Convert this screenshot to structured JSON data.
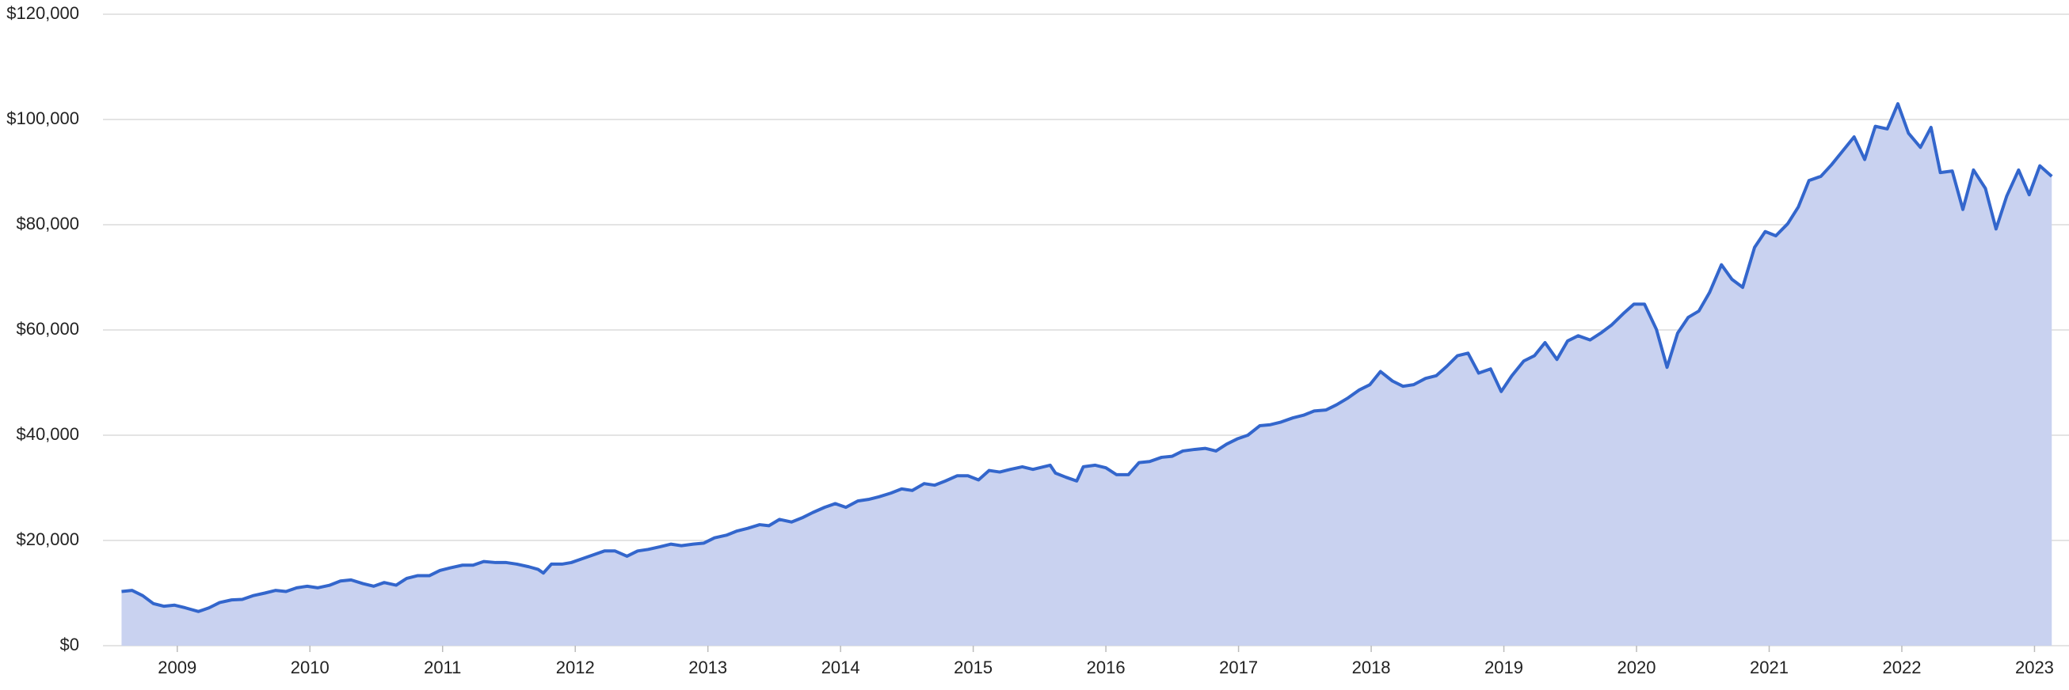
{
  "chart_data": {
    "type": "area",
    "color": "#3366cc",
    "fill": "#c9d2f0",
    "grid": true,
    "xlim": [
      2008.44,
      2023.26
    ],
    "xticks": [
      2009,
      2010,
      2011,
      2012,
      2013,
      2014,
      2015,
      2016,
      2017,
      2018,
      2019,
      2020,
      2021,
      2022,
      2023
    ],
    "ylim": [
      0,
      120000
    ],
    "yticks": [
      {
        "value": 0,
        "label": "$0"
      },
      {
        "value": 20000,
        "label": "$20,000"
      },
      {
        "value": 40000,
        "label": "$40,000"
      },
      {
        "value": 60000,
        "label": "$60,000"
      },
      {
        "value": 80000,
        "label": "$80,000"
      },
      {
        "value": 100000,
        "label": "$100,000"
      },
      {
        "value": 120000,
        "label": "$120,000"
      }
    ],
    "x": [
      2008.58,
      2008.66,
      2008.74,
      2008.82,
      2008.9,
      2008.98,
      2009.06,
      2009.16,
      2009.24,
      2009.32,
      2009.41,
      2009.49,
      2009.57,
      2009.66,
      2009.74,
      2009.82,
      2009.9,
      2009.98,
      2010.06,
      2010.15,
      2010.23,
      2010.31,
      2010.4,
      2010.48,
      2010.56,
      2010.65,
      2010.73,
      2010.81,
      2010.9,
      2010.98,
      2011.06,
      2011.15,
      2011.23,
      2011.31,
      2011.4,
      2011.48,
      2011.56,
      2011.65,
      2011.72,
      2011.76,
      2011.82,
      2011.9,
      2011.97,
      2012.05,
      2012.14,
      2012.22,
      2012.3,
      2012.39,
      2012.47,
      2012.55,
      2012.64,
      2012.72,
      2012.8,
      2012.89,
      2012.97,
      2013.05,
      2013.14,
      2013.22,
      2013.3,
      2013.39,
      2013.46,
      2013.54,
      2013.63,
      2013.71,
      2013.79,
      2013.88,
      2013.96,
      2014.04,
      2014.13,
      2014.21,
      2014.29,
      2014.38,
      2014.46,
      2014.54,
      2014.63,
      2014.71,
      2014.79,
      2014.88,
      2014.96,
      2015.04,
      2015.12,
      2015.2,
      2015.28,
      2015.37,
      2015.45,
      2015.53,
      2015.58,
      2015.62,
      2015.7,
      2015.78,
      2015.83,
      2015.92,
      2016.0,
      2016.08,
      2016.17,
      2016.25,
      2016.33,
      2016.42,
      2016.5,
      2016.58,
      2016.67,
      2016.75,
      2016.83,
      2016.91,
      2016.99,
      2017.07,
      2017.16,
      2017.24,
      2017.32,
      2017.41,
      2017.49,
      2017.57,
      2017.66,
      2017.74,
      2017.82,
      2017.91,
      2017.99,
      2018.07,
      2018.16,
      2018.24,
      2018.32,
      2018.41,
      2018.49,
      2018.57,
      2018.65,
      2018.73,
      2018.81,
      2018.9,
      2018.98,
      2019.06,
      2019.15,
      2019.23,
      2019.31,
      2019.4,
      2019.48,
      2019.56,
      2019.65,
      2019.73,
      2019.81,
      2019.9,
      2019.98,
      2020.06,
      2020.15,
      2020.23,
      2020.31,
      2020.39,
      2020.47,
      2020.55,
      2020.64,
      2020.72,
      2020.8,
      2020.89,
      2020.97,
      2021.05,
      2021.14,
      2021.22,
      2021.3,
      2021.39,
      2021.47,
      2021.55,
      2021.64,
      2021.72,
      2021.8,
      2021.89,
      2021.97,
      2022.05,
      2022.14,
      2022.22,
      2022.29,
      2022.38,
      2022.46,
      2022.54,
      2022.63,
      2022.71,
      2022.79,
      2022.88,
      2022.96,
      2023.04,
      2023.13
    ],
    "values": [
      10300,
      10500,
      9500,
      8000,
      7500,
      7700,
      7200,
      6500,
      7200,
      8200,
      8700,
      8800,
      9500,
      10000,
      10500,
      10300,
      11000,
      11300,
      11000,
      11500,
      12300,
      12500,
      11800,
      11300,
      12000,
      11500,
      12800,
      13300,
      13300,
      14300,
      14800,
      15300,
      15300,
      16000,
      15800,
      15800,
      15500,
      15000,
      14500,
      13800,
      15500,
      15500,
      15800,
      16500,
      17300,
      18000,
      18000,
      17000,
      18000,
      18300,
      18800,
      19300,
      19000,
      19300,
      19500,
      20500,
      21000,
      21800,
      22300,
      23000,
      22800,
      24000,
      23500,
      24300,
      25300,
      26300,
      27000,
      26300,
      27500,
      27800,
      28300,
      29000,
      29800,
      29500,
      30800,
      30500,
      31300,
      32300,
      32300,
      31500,
      33300,
      33000,
      33500,
      34000,
      33500,
      34000,
      34300,
      32800,
      32000,
      31300,
      34000,
      34300,
      33800,
      32500,
      32500,
      34800,
      35000,
      35800,
      36000,
      37000,
      37300,
      37500,
      37000,
      38300,
      39300,
      40000,
      41800,
      42000,
      42500,
      43300,
      43800,
      44600,
      44800,
      45800,
      47000,
      48600,
      49600,
      52100,
      50300,
      49300,
      49600,
      50800,
      51300,
      53100,
      55100,
      55600,
      51800,
      52600,
      48300,
      51300,
      54100,
      55100,
      57600,
      54400,
      57900,
      58900,
      58100,
      59400,
      60900,
      63100,
      64900,
      64900,
      60100,
      52900,
      59400,
      62400,
      63600,
      67100,
      72400,
      69600,
      68100,
      75700,
      78700,
      77900,
      80200,
      83400,
      88400,
      89200,
      91400,
      93900,
      96700,
      92400,
      98700,
      98200,
      103000,
      97400,
      94700,
      98500,
      89900,
      90200,
      82900,
      90400,
      86900,
      79200,
      85400,
      90400,
      85700,
      91200,
      89200
    ]
  }
}
